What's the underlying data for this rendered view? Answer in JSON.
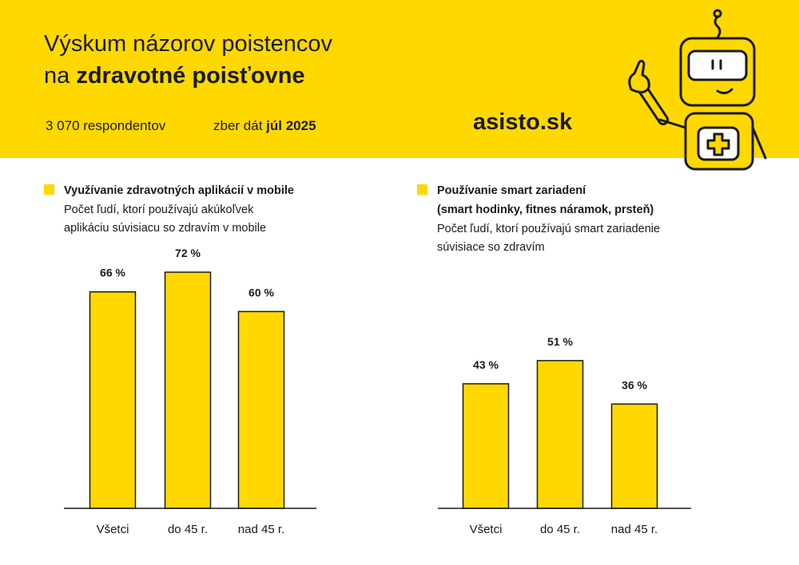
{
  "header": {
    "title": [
      [
        "Výskum názorov poistencov"
      ],
      [
        "na",
        "zdravotné poisťovne"
      ]
    ],
    "respondents": "3 070 respondentov",
    "collection": [
      "zber dát",
      "júl 2025"
    ],
    "brand": "asisto.sk"
  },
  "chart_data": [
    {
      "type": "bar",
      "title": [
        "Využívanie zdravotných aplikácií v mobile"
      ],
      "subtitle": [
        "Počet ľudí, ktorí používajú akúkoľvek",
        "aplikáciu súvisiacu so zdravím v mobile"
      ],
      "categories": [
        "Všetci",
        "do 45 r.",
        "nad 45 r."
      ],
      "values": [
        66,
        72,
        60
      ],
      "value_labels": [
        "66 %",
        "72 %",
        "60 %"
      ],
      "color": "#ffd800"
    },
    {
      "type": "bar",
      "title": [
        "Používanie smart zariadení",
        "(smart hodinky, fitnes náramok, prsteň)"
      ],
      "subtitle": [
        "Počet ľudí, ktorí používajú smart zariadenie",
        "súvisiace so zdravím"
      ],
      "categories": [
        "Všetci",
        "do 45 r.",
        "nad 45 r."
      ],
      "values": [
        43,
        51,
        36
      ],
      "value_labels": [
        "43 %",
        "51 %",
        "36 %"
      ],
      "color": "#ffd800"
    }
  ]
}
